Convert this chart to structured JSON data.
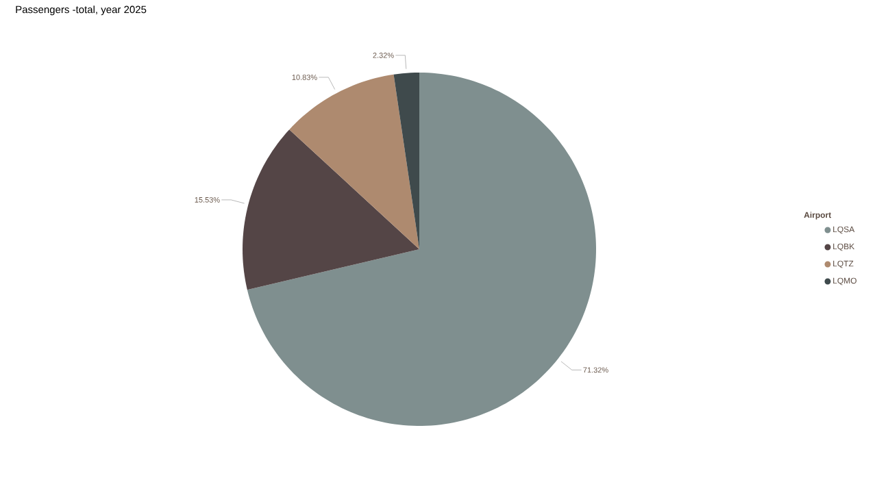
{
  "chart_data": {
    "type": "pie",
    "title": "Passengers -total, year 2025",
    "legend_title": "Airport",
    "legend": "right",
    "categories": [
      "LQSA",
      "LQBK",
      "LQTZ",
      "LQMO"
    ],
    "values": [
      71.32,
      15.53,
      10.83,
      2.32
    ],
    "value_labels": [
      "71.32%",
      "15.53%",
      "10.83%",
      "2.32%"
    ],
    "colors": [
      "#7f8f8f",
      "#544546",
      "#ae8a6f",
      "#3f4a4c"
    ]
  }
}
